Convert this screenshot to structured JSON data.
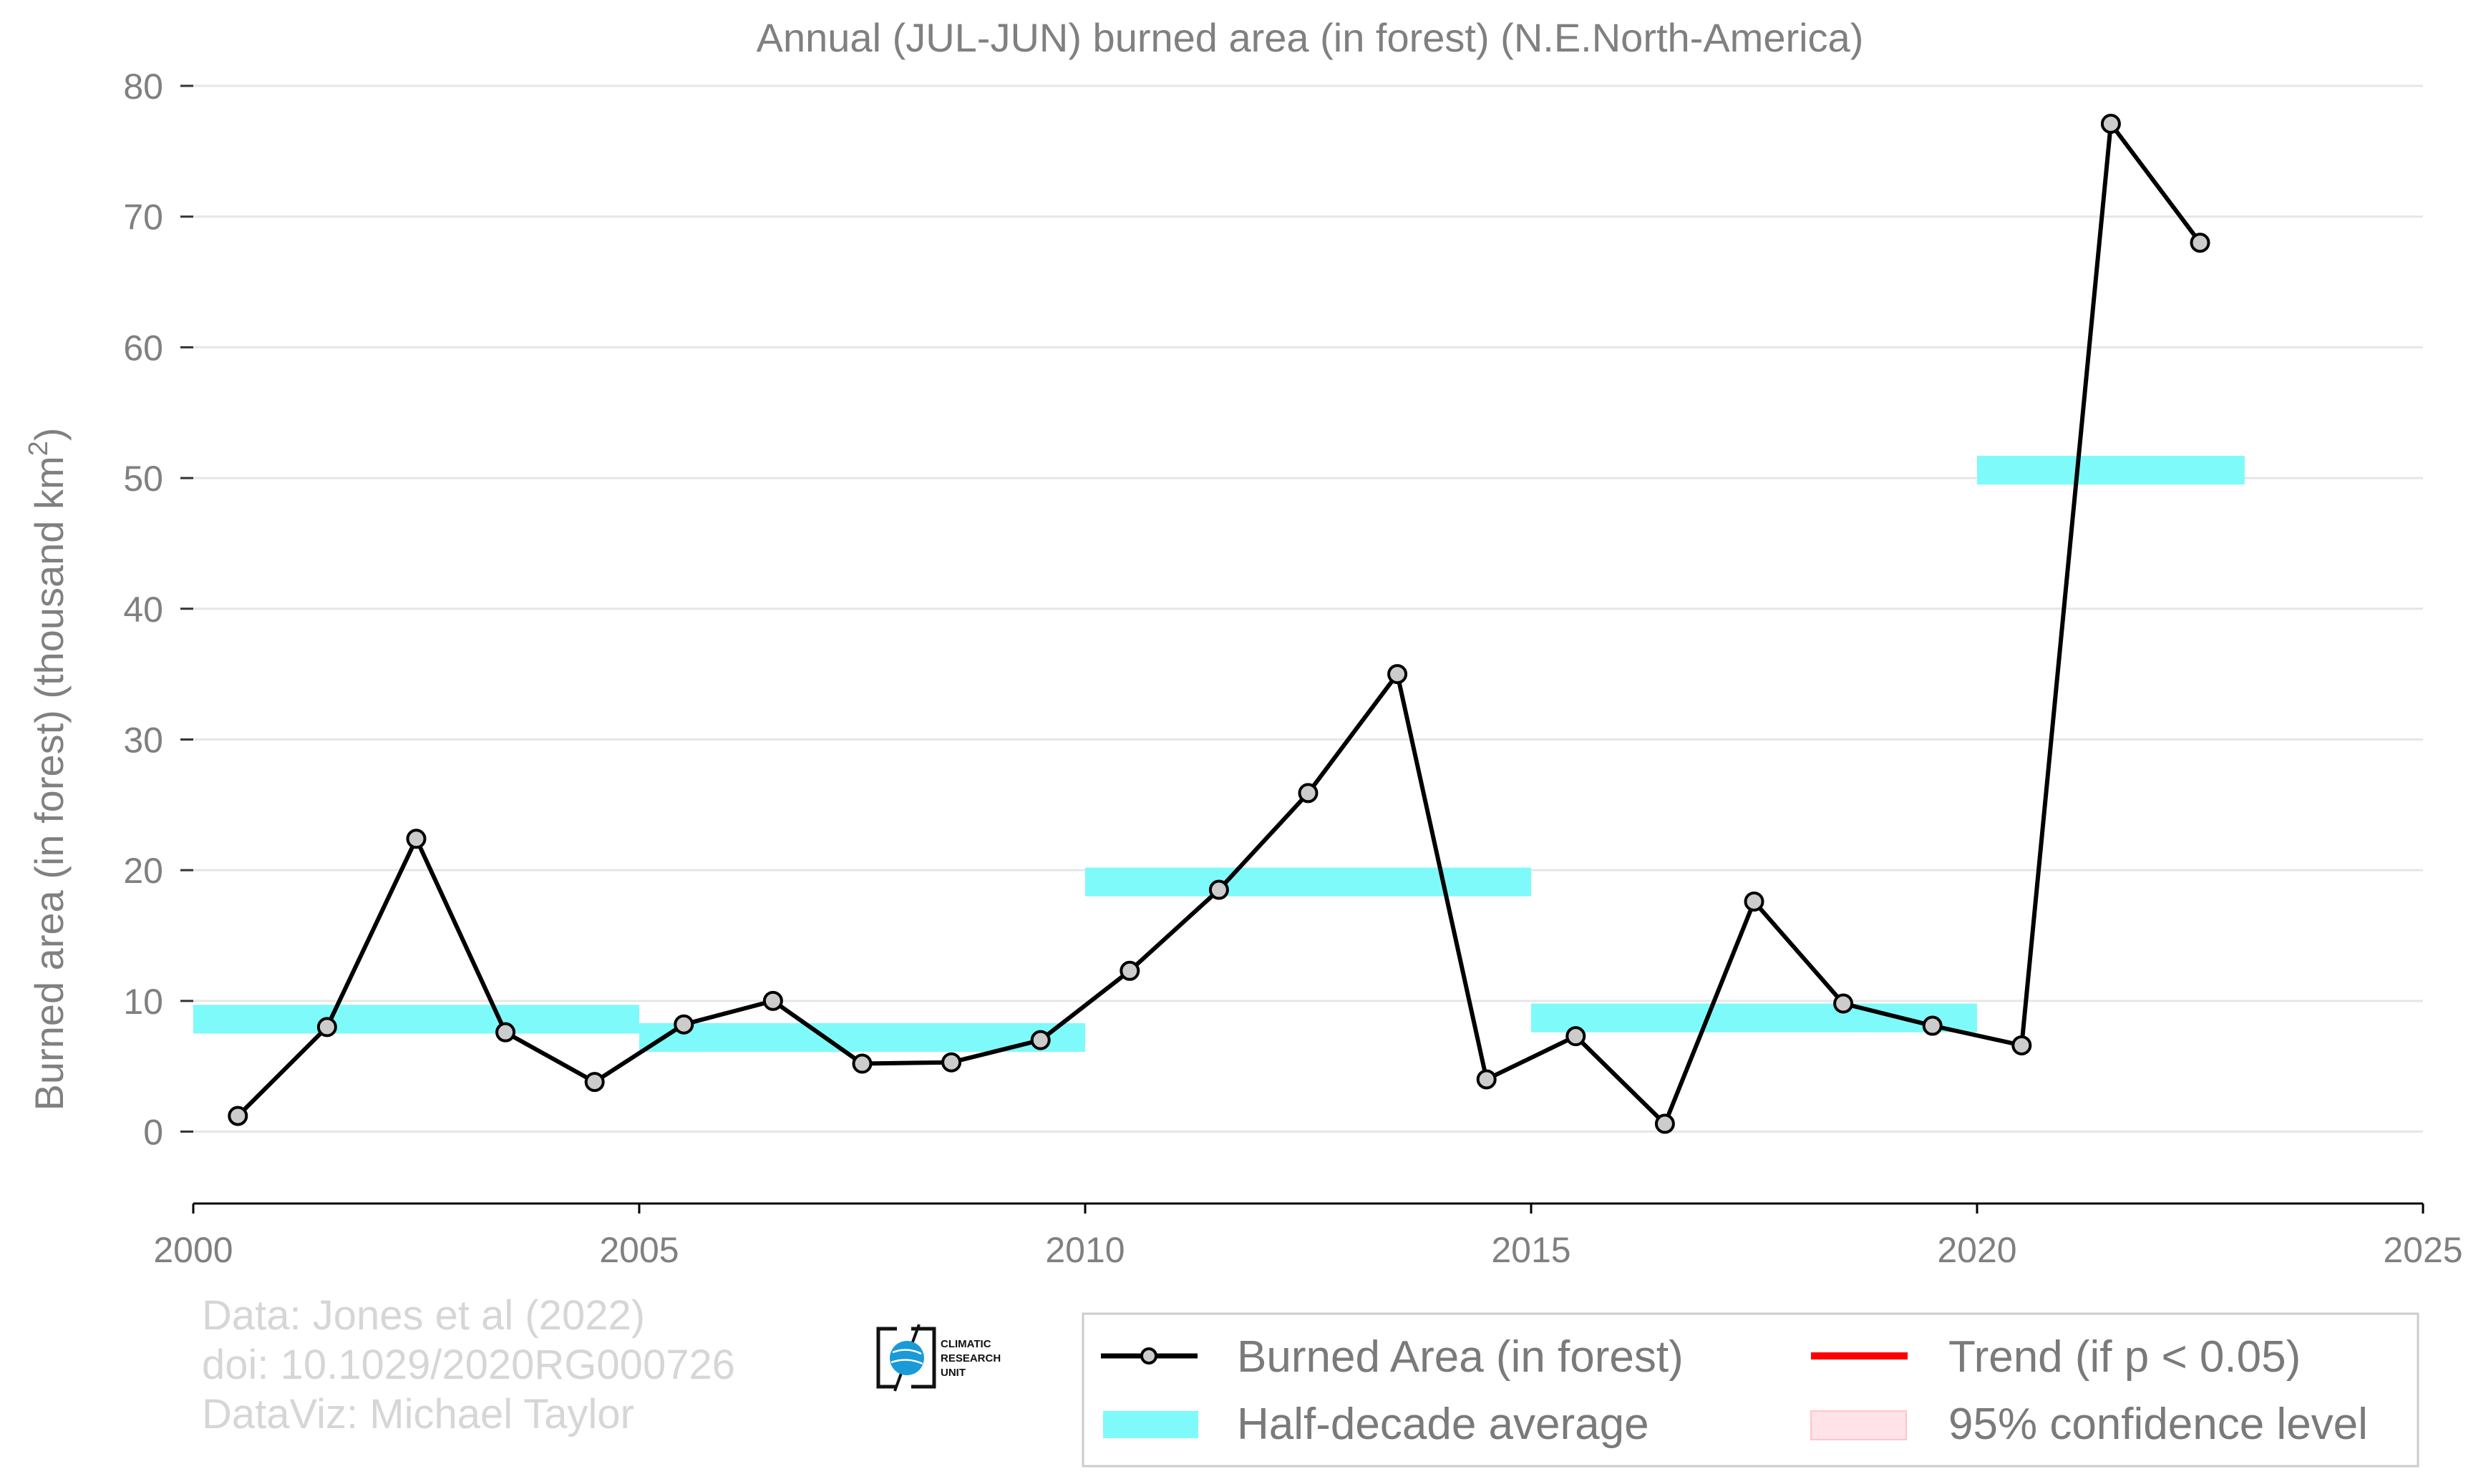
{
  "chart_data": {
    "type": "line",
    "title": "Annual (JUL-JUN) burned area (in forest) (N.E.North-America)",
    "xlabel": "",
    "ylabel": "Burned area (in forest) (thousand km",
    "ylabel_superscript": "2",
    "ylabel_suffix": ")",
    "xlim": [
      2000,
      2025
    ],
    "ylim": [
      -5.5,
      80
    ],
    "xticks": [
      2000,
      2005,
      2010,
      2015,
      2020,
      2025
    ],
    "yticks": [
      0,
      10,
      20,
      30,
      40,
      50,
      60,
      70,
      80
    ],
    "grid": "horizontal",
    "series": [
      {
        "name": "Burned Area (in forest)",
        "color": "#000000",
        "marker_fill": "#cccccc",
        "x": [
          2000.5,
          2001.5,
          2002.5,
          2003.5,
          2004.5,
          2005.5,
          2006.5,
          2007.5,
          2008.5,
          2009.5,
          2010.5,
          2011.5,
          2012.5,
          2013.5,
          2014.5,
          2015.5,
          2016.5,
          2017.5,
          2018.5,
          2019.5,
          2020.5,
          2021.5,
          2022.5
        ],
        "y": [
          1.2,
          8.0,
          22.4,
          7.6,
          3.8,
          8.2,
          10.0,
          5.2,
          5.3,
          7.0,
          12.3,
          18.5,
          25.9,
          35.0,
          4.0,
          7.3,
          0.6,
          17.6,
          9.8,
          8.1,
          6.6,
          77.1,
          68.0
        ]
      }
    ],
    "half_decade_average": {
      "name": "Half-decade average",
      "color": "#7ffafa",
      "segments": [
        {
          "start": 2000,
          "end": 2005,
          "value": 8.6
        },
        {
          "start": 2005,
          "end": 2010,
          "value": 7.2
        },
        {
          "start": 2010,
          "end": 2015,
          "value": 19.1
        },
        {
          "start": 2015,
          "end": 2020,
          "value": 8.7
        },
        {
          "start": 2020,
          "end": 2023,
          "value": 50.6
        }
      ]
    },
    "legend": {
      "placement": "bottom-right",
      "entries": [
        {
          "label": "Burned Area (in forest)",
          "kind": "line-marker",
          "color": "#000000"
        },
        {
          "label": "Trend (if p < 0.05)",
          "kind": "line",
          "color": "#ff0000"
        },
        {
          "label": "Half-decade average",
          "kind": "band",
          "color": "#7ffafa"
        },
        {
          "label": "95% confidence level",
          "kind": "patch",
          "color": "#ffe3e6"
        }
      ]
    }
  },
  "credits": {
    "line1": "Data: Jones et al (2022)",
    "line2": "doi: 10.1029/2020RG000726",
    "line3": "DataViz: Michael Taylor"
  },
  "logo": {
    "line1": "CLIMATIC",
    "line2": "RESEARCH",
    "line3": "UNIT",
    "icon": "globe-icon",
    "color": "#1a9ad6"
  }
}
